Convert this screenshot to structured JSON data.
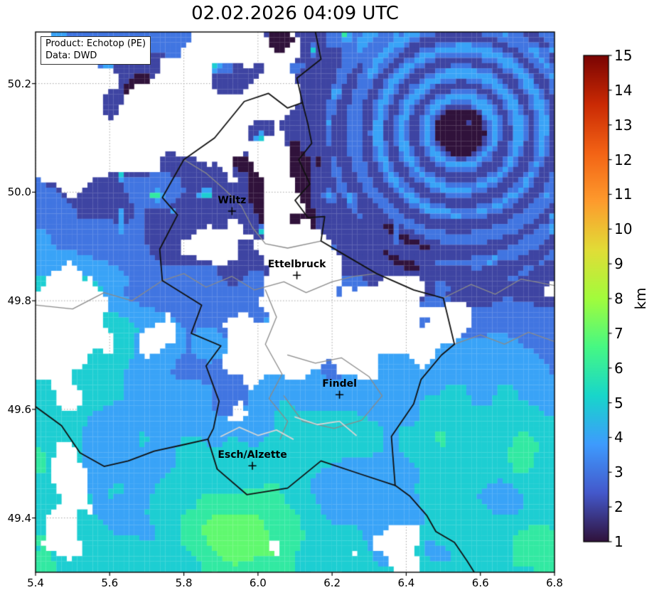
{
  "title": "02.02.2026 04:09 UTC",
  "info_box": {
    "product": "Product: Echotop (PE)",
    "data": "Data: DWD"
  },
  "axes": {
    "x_ticks": [
      5.4,
      5.6,
      5.8,
      6.0,
      6.2,
      6.4,
      6.6,
      6.8
    ],
    "y_ticks": [
      50.2,
      50.0,
      49.8,
      49.6,
      49.4
    ],
    "x_range": [
      5.4,
      6.8
    ],
    "y_range": [
      49.3,
      50.295
    ]
  },
  "colorbar": {
    "label": "km",
    "min": 1,
    "max": 15,
    "ticks": [
      1,
      2,
      3,
      4,
      5,
      6,
      7,
      8,
      9,
      10,
      11,
      12,
      13,
      14,
      15
    ],
    "colormap": "turbo",
    "stops": [
      "#30123b",
      "#4458cb",
      "#3e9bfe",
      "#18d6cb",
      "#46f884",
      "#a2fc3c",
      "#e1dd37",
      "#fe9b2d",
      "#f36315",
      "#ca2a04",
      "#7a0403"
    ]
  },
  "cities": [
    {
      "name": "Wiltz",
      "lon": 5.93,
      "lat": 49.965
    },
    {
      "name": "Ettelbruck",
      "lon": 6.105,
      "lat": 49.847
    },
    {
      "name": "Findel",
      "lon": 6.22,
      "lat": 49.627
    },
    {
      "name": "Esch/Alzette",
      "lon": 5.985,
      "lat": 49.496
    }
  ],
  "chart_data": {
    "type": "heatmap",
    "title": "02.02.2026 04:09 UTC",
    "product": "Echotop (PE)",
    "source": "DWD",
    "x_ticks": [
      5.4,
      5.6,
      5.8,
      6.0,
      6.2,
      6.4,
      6.6,
      6.8
    ],
    "y_ticks": [
      50.2,
      50.0,
      49.8,
      49.6,
      49.4
    ],
    "x_range": [
      5.4,
      6.8
    ],
    "y_range": [
      49.3,
      50.295
    ],
    "value_unit": "km",
    "value_range": [
      1,
      15
    ],
    "colormap": "turbo",
    "colorbar_position": "right",
    "grid": "dashed lat/lon gridlines at tick positions",
    "annotations": [
      {
        "label": "Wiltz",
        "lon": 5.93,
        "lat": 49.965
      },
      {
        "label": "Ettelbruck",
        "lon": 6.105,
        "lat": 49.847
      },
      {
        "label": "Findel",
        "lon": 6.22,
        "lat": 49.627
      },
      {
        "label": "Esch/Alzette",
        "lon": 5.985,
        "lat": 49.496
      }
    ],
    "observed_pattern": [
      {
        "region": "northeast, centered near 6.55E 50.11N",
        "echotop_km": "2-5",
        "note": "large contiguous echo area with concentric ring artifact and a ~1 km dark core"
      },
      {
        "region": "north and central Luxembourg",
        "echotop_km": "1-3",
        "note": "patchy dark-navy/indigo and blue cells with echo-free (white) gaps"
      },
      {
        "region": "southern band (Esch/Alzette and south)",
        "echotop_km": "3-7",
        "note": "widespread blue/cyan echoes with green cells up to ~7 km"
      },
      {
        "region": "white areas",
        "echotop_km": "no echo",
        "note": "no detection"
      }
    ]
  }
}
